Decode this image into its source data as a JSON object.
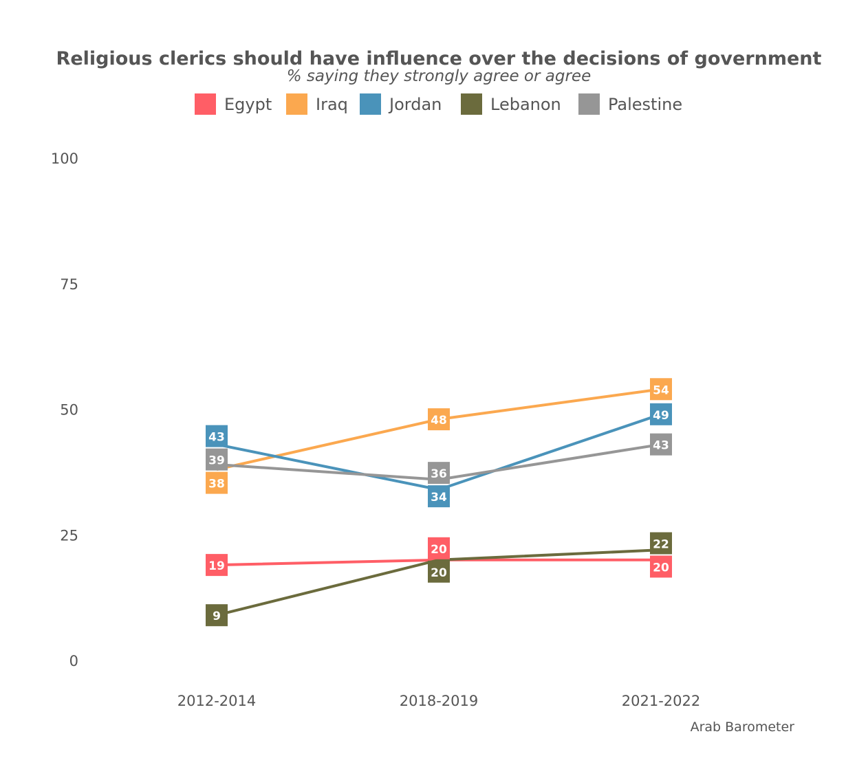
{
  "chart_data": {
    "type": "line",
    "title": "Religious clerics should have influence over the decisions of government",
    "subtitle": "% saying they strongly agree or agree",
    "caption": "Arab Barometer",
    "categories": [
      "2012-2014",
      "2018-2019",
      "2021-2022"
    ],
    "ylim": [
      0,
      100
    ],
    "yticks": [
      0,
      25,
      50,
      75,
      100
    ],
    "grid": false,
    "legend": "top",
    "series": [
      {
        "name": "Egypt",
        "color": "#FF5E66",
        "values": [
          19,
          20,
          20
        ]
      },
      {
        "name": "Iraq",
        "color": "#FBA84F",
        "values": [
          38,
          48,
          54
        ]
      },
      {
        "name": "Jordan",
        "color": "#4A93BA",
        "values": [
          43,
          34,
          49
        ]
      },
      {
        "name": "Lebanon",
        "color": "#6B6B3D",
        "values": [
          9,
          20,
          22
        ]
      },
      {
        "name": "Palestine",
        "color": "#969696",
        "values": [
          39,
          36,
          43
        ]
      }
    ]
  }
}
